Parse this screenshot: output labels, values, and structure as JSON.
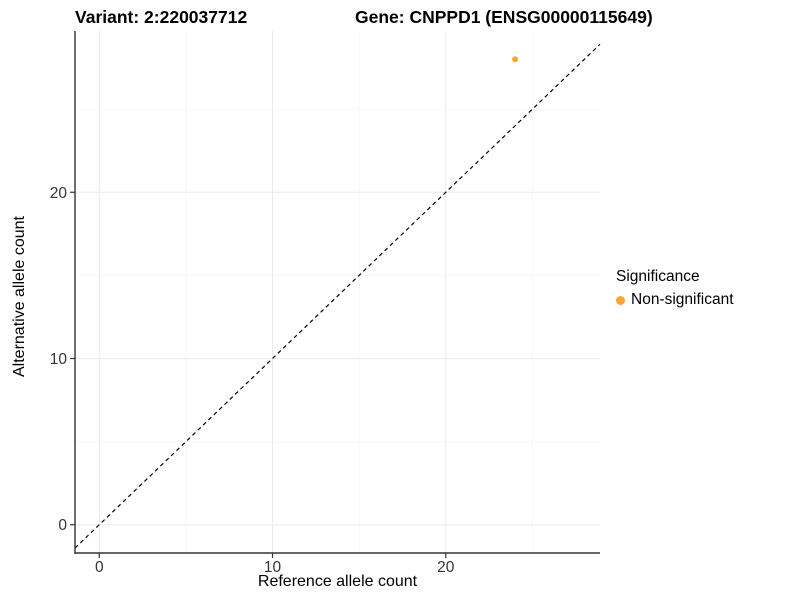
{
  "chart_data": {
    "type": "scatter",
    "titles": {
      "variant": "Variant: 2:220037712",
      "gene": "Gene: CNPPD1 (ENSG00000115649)"
    },
    "xlabel": "Reference allele count",
    "ylabel": "Alternative allele count",
    "xlim": [
      -1.4,
      28.9
    ],
    "ylim": [
      -1.7,
      29.7
    ],
    "xticks": [
      0,
      10,
      20
    ],
    "yticks": [
      0,
      10,
      20
    ],
    "minor_xticks": [
      5,
      15,
      25
    ],
    "minor_yticks": [
      5,
      15,
      25
    ],
    "grid": true,
    "series": [
      {
        "name": "Non-significant",
        "color": "#FAA43C",
        "points": [
          {
            "x": 24,
            "y": 28
          }
        ]
      }
    ],
    "reference_line": {
      "identity": true,
      "style": "dashed",
      "color": "#000000"
    },
    "legend": {
      "title": "Significance",
      "position": "right-middle",
      "entries": [
        {
          "label": "Non-significant",
          "color": "#FAA43C"
        }
      ]
    },
    "colors": {
      "background": "#FFFFFF",
      "grid_major": "#ECECEC",
      "grid_minor": "#F6F6F6",
      "axis_line": "#333333",
      "tick_label": "#333333",
      "text": "#000000"
    }
  }
}
